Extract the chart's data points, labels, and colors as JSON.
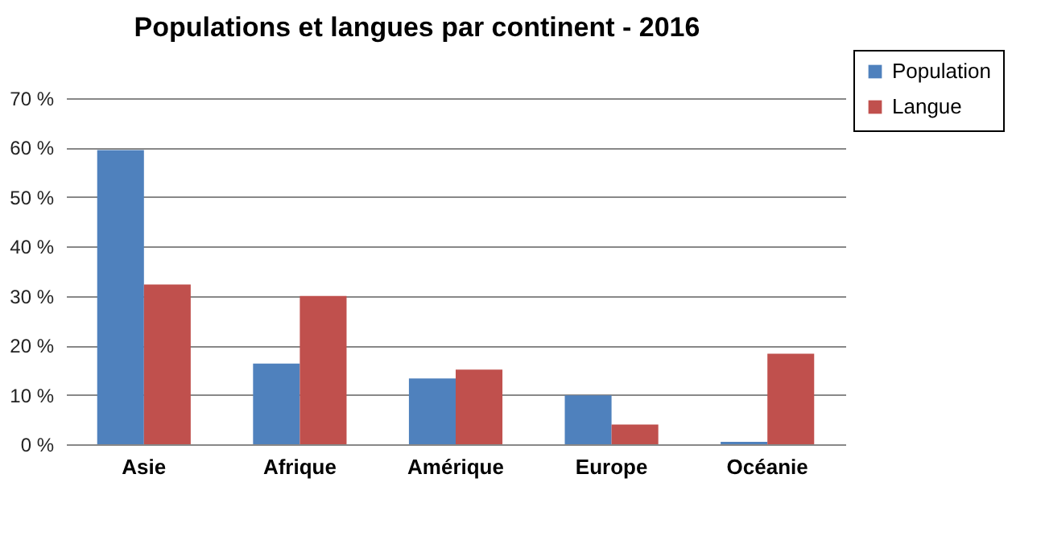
{
  "chart_data": {
    "type": "bar",
    "title": "Populations et langues par continent - 2016",
    "categories": [
      "Asie",
      "Afrique",
      "Amérique",
      "Europe",
      "Océanie"
    ],
    "series": [
      {
        "name": "Population",
        "color": "#4f81bd",
        "values": [
          59.5,
          16.3,
          13.3,
          9.9,
          0.5
        ]
      },
      {
        "name": "Langue",
        "color": "#c0504d",
        "values": [
          32.3,
          30,
          15.1,
          4,
          18.3
        ]
      }
    ],
    "ylim": [
      0,
      70
    ],
    "yticks": [
      {
        "value": 0,
        "label": "0 %"
      },
      {
        "value": 10,
        "label": "10 %"
      },
      {
        "value": 20,
        "label": "20 %"
      },
      {
        "value": 30,
        "label": "30 %"
      },
      {
        "value": 40,
        "label": "40 %"
      },
      {
        "value": 50,
        "label": "50 %"
      },
      {
        "value": 60,
        "label": "60 %"
      },
      {
        "value": 70,
        "label": "70 %"
      }
    ],
    "grid": "y",
    "legend": "top right"
  }
}
